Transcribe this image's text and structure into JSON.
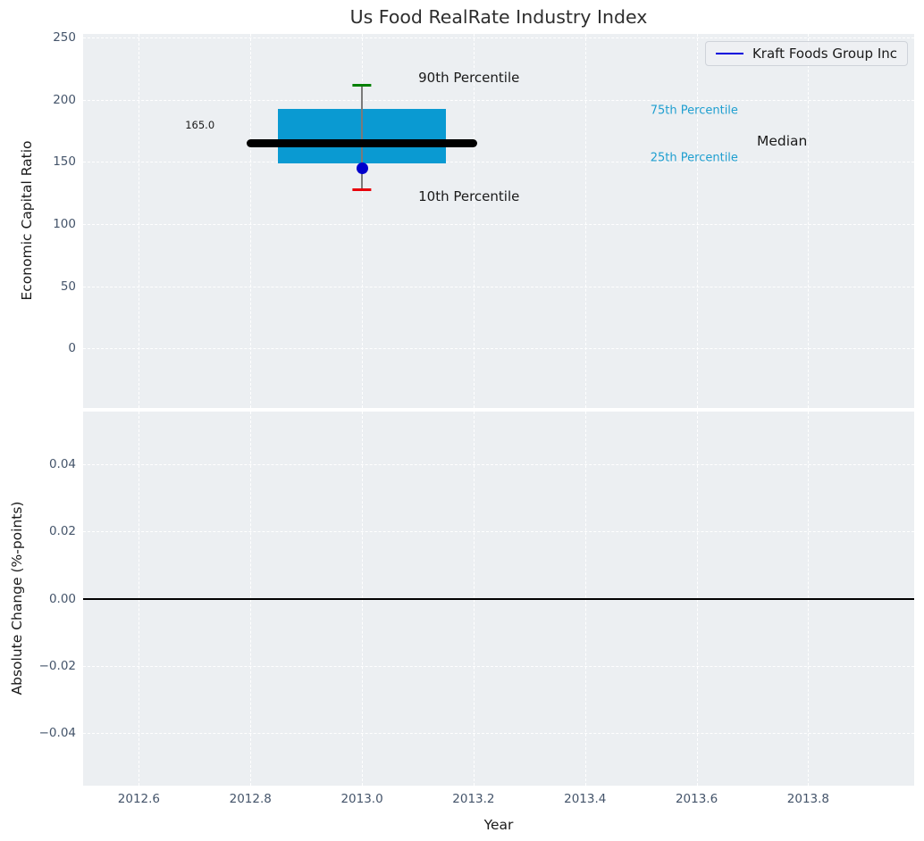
{
  "title": "Us Food RealRate Industry Index",
  "legend": {
    "label": "Kraft Foods Group Inc"
  },
  "axes": {
    "xlabel": "Year",
    "xticks": [
      "2012.6",
      "2012.8",
      "2013.0",
      "2013.2",
      "2013.4",
      "2013.6",
      "2013.8"
    ],
    "xtick_values": [
      2012.6,
      2012.8,
      2013.0,
      2013.2,
      2013.4,
      2013.6,
      2013.8
    ],
    "xlim": [
      2012.5,
      2013.99
    ],
    "top": {
      "ylabel": "Economic Capital Ratio",
      "yticks": [
        "250",
        "200",
        "150",
        "100",
        "50",
        "0"
      ],
      "ytick_values": [
        250,
        200,
        150,
        100,
        50,
        0
      ],
      "ylim": [
        -48,
        253
      ]
    },
    "bottom": {
      "ylabel": "Absolute Change (%-points)",
      "yticks": [
        "0.04",
        "0.02",
        "0.00",
        "−0.02",
        "−0.04"
      ],
      "ytick_values": [
        0.04,
        0.02,
        0.0,
        -0.02,
        -0.04
      ],
      "ylim": [
        -0.0555,
        0.0555
      ]
    }
  },
  "colors": {
    "figure_bg": "#ffffff",
    "plot_bg": "#eceff2",
    "grid": "#ffffff",
    "box_fill": "#0a9ad2",
    "median_line": "#000000",
    "whisker": "#7a7a7a",
    "cap_90th": "#008000",
    "cap_10th": "#e8000b",
    "company_marker": "#0000cc",
    "legend_line": "#0000dd",
    "zero_line": "#000000",
    "tick_label": "#44546a",
    "axis_label": "#1a1a1a",
    "title": "#2e2e2e",
    "percentile_text": "#1f9fd0"
  },
  "chart_data": [
    {
      "type": "boxplot",
      "title": "Us Food RealRate Industry Index",
      "xlabel": "Year",
      "ylabel": "Economic Capital Ratio",
      "x": 2013.0,
      "percentiles": {
        "p10": 128,
        "p25": 149,
        "median": 165.0,
        "p75": 193,
        "p90": 212
      },
      "company_point": {
        "name": "Kraft Foods Group Inc",
        "x": 2013.0,
        "value": 145
      },
      "median_label": "165.0",
      "box_half_width": 0.151,
      "median_half_width": 0.207,
      "cap_half_width": 0.017,
      "xlim": [
        2012.5,
        2013.99
      ],
      "ylim": [
        -48,
        253
      ],
      "grid": true,
      "legend_position": "upper right",
      "annotations": [
        {
          "name": "annotation-90th-percentile",
          "text": "90th Percentile",
          "x": 2013.101,
          "y": 218,
          "color": "#1a1a1a",
          "size": 15
        },
        {
          "name": "annotation-10th-percentile",
          "text": "10th Percentile",
          "x": 2013.101,
          "y": 122,
          "color": "#1a1a1a",
          "size": 15
        },
        {
          "name": "annotation-75th-percentile",
          "text": "75th Percentile",
          "x": 2013.517,
          "y": 191,
          "color": "#1f9fd0",
          "size": 13
        },
        {
          "name": "annotation-25th-percentile",
          "text": "25th Percentile",
          "x": 2013.517,
          "y": 153,
          "color": "#1f9fd0",
          "size": 13
        },
        {
          "name": "annotation-median",
          "text": "Median",
          "x": 2013.708,
          "y": 167,
          "color": "#1a1a1a",
          "size": 15.5
        },
        {
          "name": "annotation-median-value",
          "text": "165.0",
          "x": 2012.683,
          "y": 180,
          "color": "#1a1a1a",
          "size": 11.5
        }
      ]
    },
    {
      "type": "line",
      "xlabel": "Year",
      "ylabel": "Absolute Change (%-points)",
      "series": [],
      "reference_line_y": 0.0,
      "xlim": [
        2012.5,
        2013.99
      ],
      "ylim": [
        -0.0555,
        0.0555
      ],
      "grid": true
    }
  ]
}
